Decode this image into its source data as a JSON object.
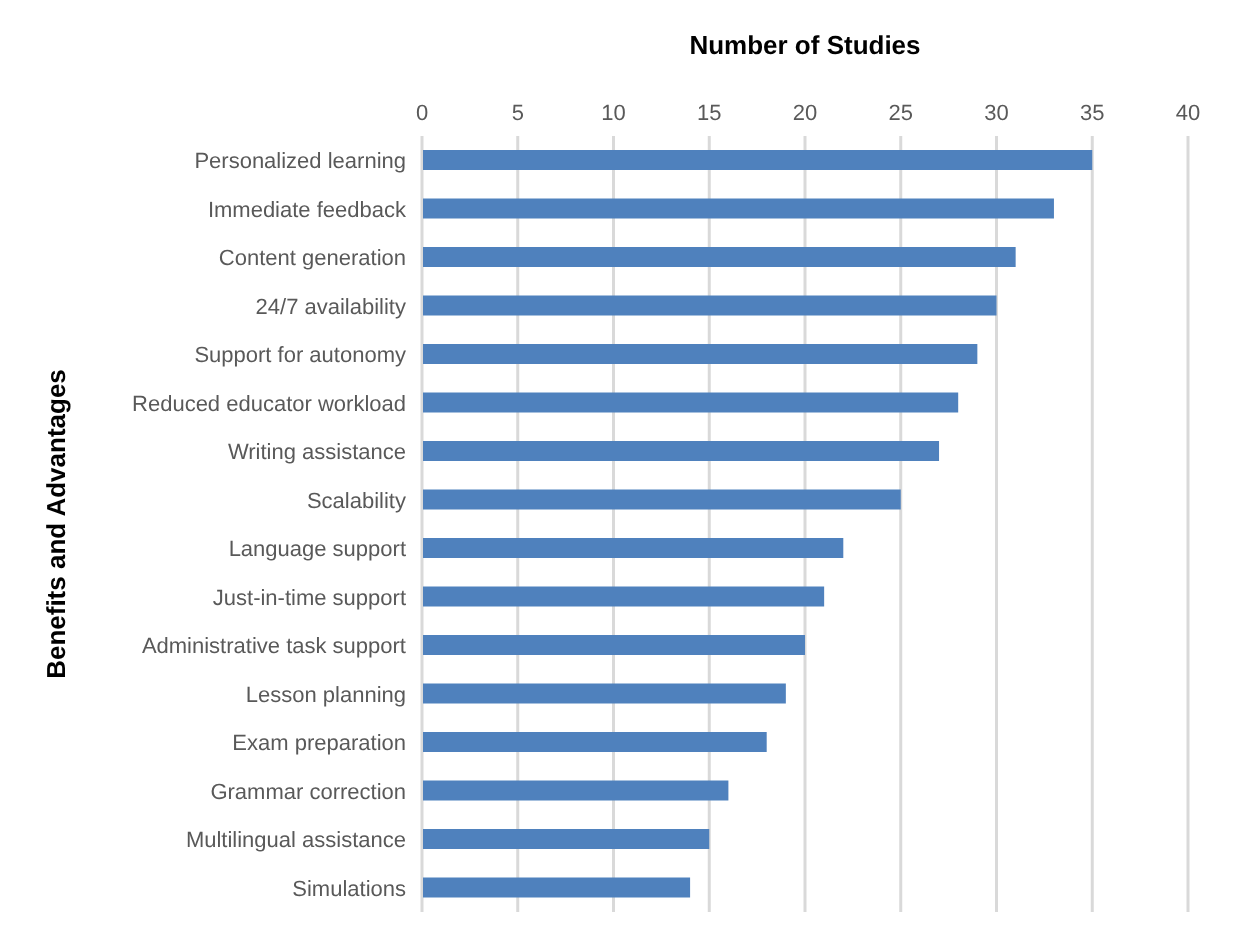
{
  "chart_data": {
    "type": "bar",
    "orientation": "horizontal",
    "xlabel": "Number of Studies",
    "ylabel": "Benefits and Advantages",
    "categories": [
      "Personalized learning",
      "Immediate feedback",
      "Content generation",
      "24/7 availability",
      "Support for autonomy",
      "Reduced educator workload",
      "Writing assistance",
      "Scalability",
      "Language support",
      "Just-in-time support",
      "Administrative task support",
      "Lesson planning",
      "Exam preparation",
      "Grammar correction",
      "Multilingual assistance",
      "Simulations"
    ],
    "values": [
      35,
      33,
      31,
      30,
      29,
      28,
      27,
      25,
      22,
      21,
      20,
      19,
      18,
      16,
      15,
      14
    ],
    "color": "#4f81bd",
    "xlim": [
      0,
      40
    ],
    "xticks": [
      0,
      5,
      10,
      15,
      20,
      25,
      30,
      35,
      40
    ],
    "grid": "x",
    "legend": false
  }
}
